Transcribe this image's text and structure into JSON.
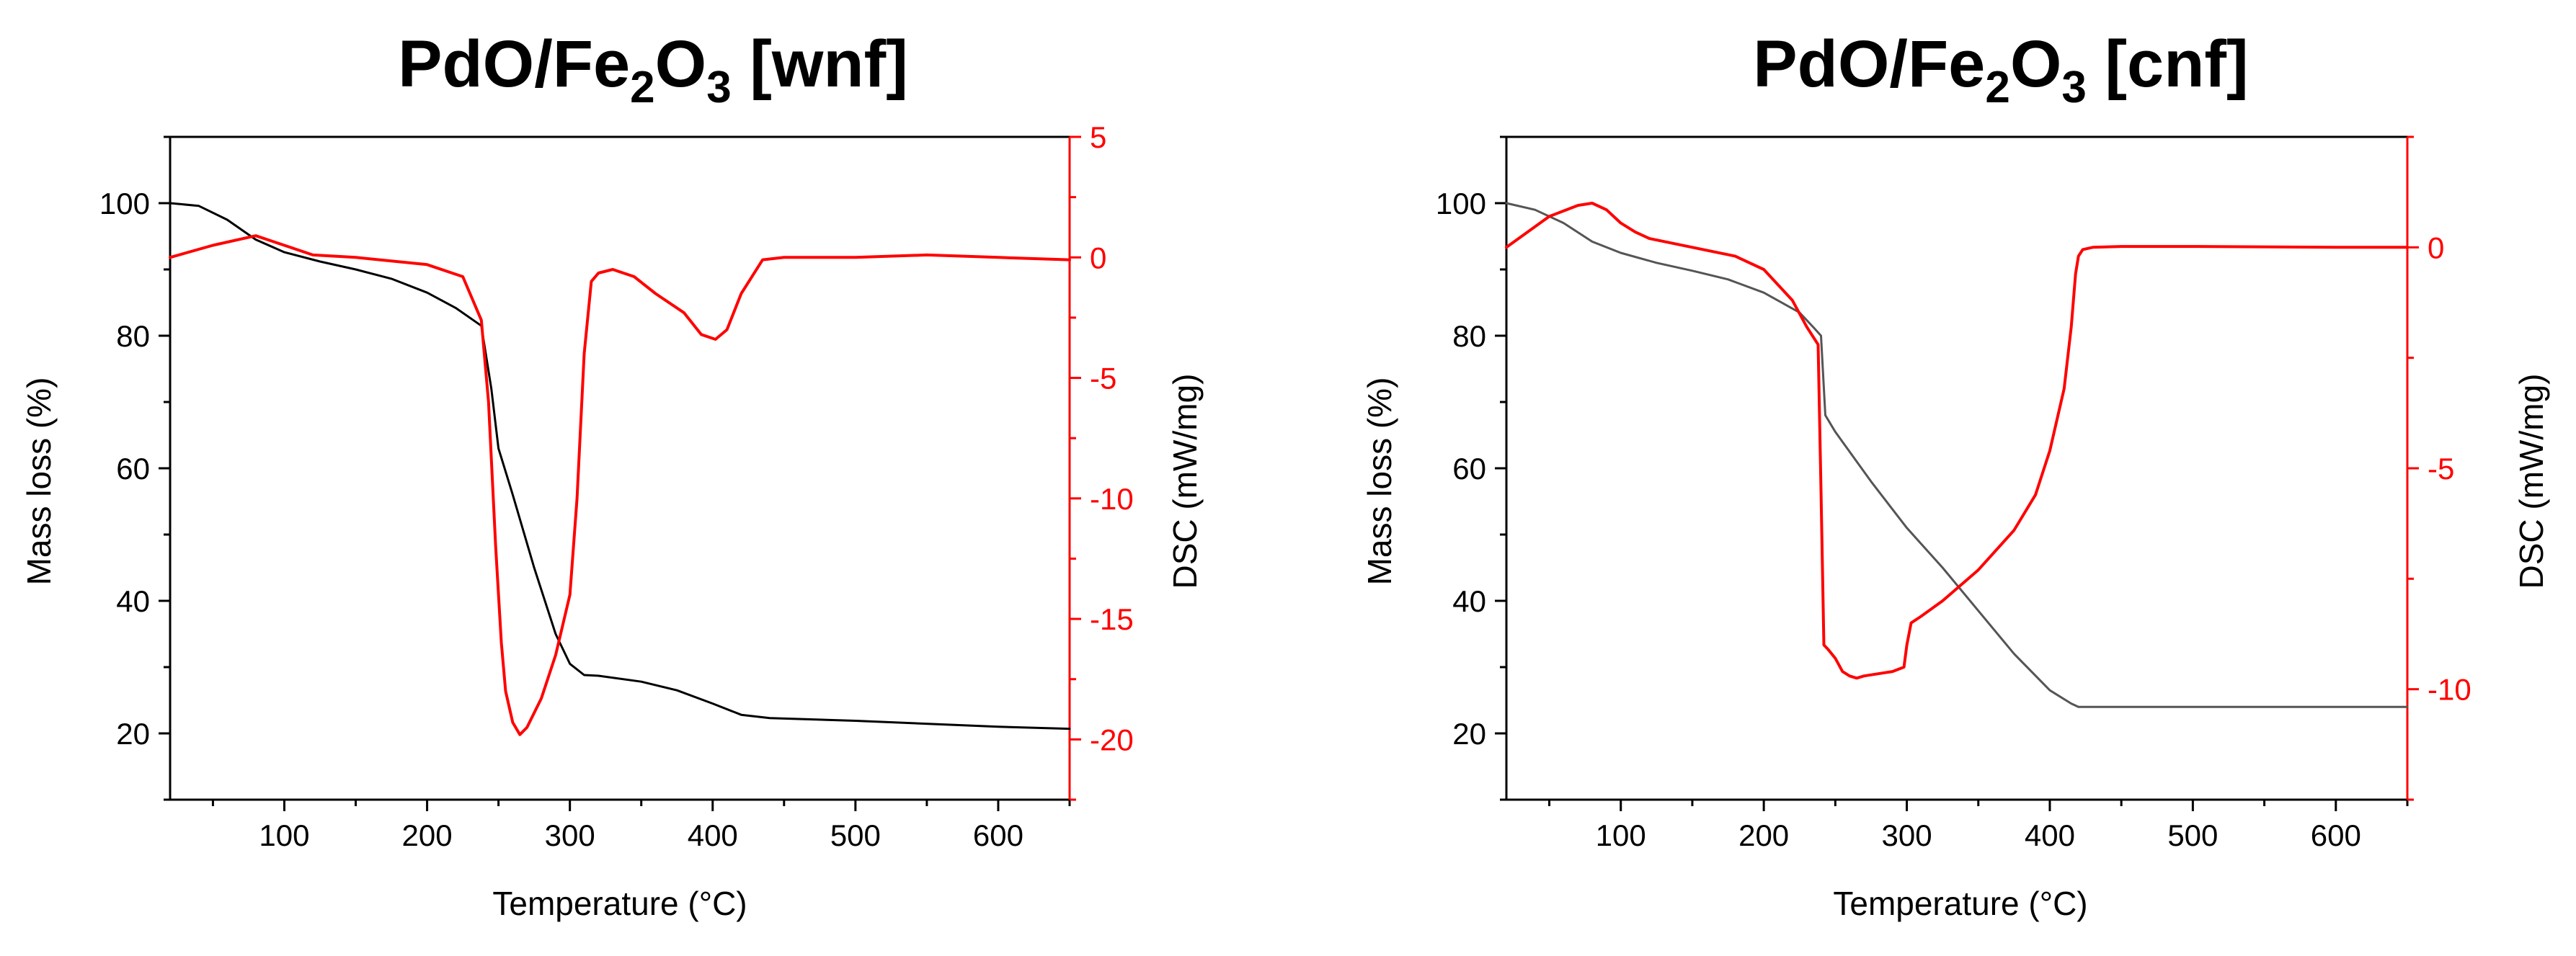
{
  "chart_data": [
    {
      "type": "line",
      "title": {
        "main": "PdO/Fe",
        "sub1": "2",
        "mid": "O",
        "sub2": "3",
        "tail": " [wnf]"
      },
      "xlabel": "Temperature (°C)",
      "ylabel": "Mass loss (%)",
      "y2label": "DSC (mW/mg)",
      "xlim": [
        20,
        650
      ],
      "ylim": [
        10,
        110
      ],
      "y2lim": [
        -22.5,
        5
      ],
      "xticks": [
        100,
        200,
        300,
        400,
        500,
        600
      ],
      "yticks": [
        20,
        40,
        60,
        80,
        100
      ],
      "y2ticks": [
        5,
        0,
        -5,
        -10,
        -15,
        -20
      ],
      "y2ticklabels": [
        "5",
        "0",
        "-5",
        "-10",
        "-15",
        "-20"
      ],
      "series": [
        {
          "name": "Mass loss",
          "axis": "left",
          "color": "#000000",
          "x": [
            20,
            40,
            60,
            80,
            100,
            125,
            150,
            175,
            200,
            220,
            238,
            245,
            250,
            260,
            275,
            290,
            300,
            310,
            320,
            350,
            375,
            400,
            420,
            440,
            500,
            600,
            650
          ],
          "y": [
            100,
            99.6,
            97.5,
            94.5,
            92.6,
            91.2,
            90.0,
            88.6,
            86.5,
            84.2,
            81.5,
            72,
            63,
            56,
            45,
            35,
            30.5,
            28.8,
            28.7,
            27.8,
            26.5,
            24.5,
            22.8,
            22.3,
            21.9,
            21.0,
            20.7
          ]
        },
        {
          "name": "DSC",
          "axis": "right",
          "color": "#ff0000",
          "x": [
            20,
            50,
            80,
            100,
            120,
            150,
            200,
            225,
            238,
            243,
            248,
            252,
            255,
            260,
            265,
            270,
            280,
            290,
            300,
            305,
            310,
            315,
            320,
            330,
            345,
            360,
            380,
            392,
            402,
            410,
            420,
            435,
            450,
            500,
            550,
            600,
            650
          ],
          "y": [
            0,
            0.5,
            0.9,
            0.5,
            0.1,
            0,
            -0.3,
            -0.8,
            -2.6,
            -6,
            -12,
            -16,
            -18,
            -19.3,
            -19.8,
            -19.5,
            -18.3,
            -16.5,
            -14,
            -10,
            -4,
            -1,
            -0.65,
            -0.5,
            -0.8,
            -1.5,
            -2.3,
            -3.2,
            -3.4,
            -3,
            -1.5,
            -0.1,
            0,
            0,
            0.1,
            0,
            -0.1
          ]
        }
      ]
    },
    {
      "type": "line",
      "title": {
        "main": "PdO/Fe",
        "sub1": "2",
        "mid": "O",
        "sub2": "3",
        "tail": " [cnf]"
      },
      "xlabel": "Temperature (°C)",
      "ylabel": "Mass loss (%)",
      "y2label": "DSC (mW/mg)",
      "xlim": [
        20,
        650
      ],
      "ylim": [
        10,
        110
      ],
      "y2lim": [
        -12.5,
        2.5
      ],
      "xticks": [
        100,
        200,
        300,
        400,
        500,
        600
      ],
      "yticks": [
        20,
        40,
        60,
        80,
        100
      ],
      "y2ticks": [
        0,
        -5,
        -10
      ],
      "y2ticklabels": [
        "0",
        "-5",
        "-10"
      ],
      "series": [
        {
          "name": "Mass loss",
          "axis": "left",
          "color": "#555555",
          "x": [
            20,
            40,
            60,
            80,
            100,
            125,
            150,
            175,
            200,
            225,
            235,
            240,
            243,
            250,
            275,
            300,
            325,
            350,
            375,
            400,
            415,
            420,
            450,
            500,
            600,
            650
          ],
          "y": [
            100,
            99,
            97,
            94.2,
            92.5,
            91,
            89.8,
            88.5,
            86.5,
            83.5,
            81.2,
            80,
            68,
            65.5,
            58,
            51,
            45,
            38.5,
            32,
            26.5,
            24.5,
            24,
            24,
            24,
            24,
            24
          ]
        },
        {
          "name": "DSC",
          "axis": "right",
          "color": "#ff0000",
          "x": [
            20,
            50,
            70,
            80,
            90,
            100,
            110,
            120,
            150,
            180,
            200,
            220,
            230,
            238,
            240,
            242,
            245,
            250,
            255,
            260,
            265,
            270,
            280,
            290,
            298,
            300,
            303,
            310,
            325,
            350,
            375,
            390,
            400,
            410,
            415,
            418,
            420,
            423,
            430,
            450,
            500,
            600,
            650
          ],
          "y": [
            0,
            0.7,
            0.95,
            1.0,
            0.85,
            0.55,
            0.35,
            0.2,
            0,
            -0.2,
            -0.5,
            -1.2,
            -1.8,
            -2.2,
            -5.5,
            -9.0,
            -9.1,
            -9.3,
            -9.6,
            -9.7,
            -9.75,
            -9.7,
            -9.65,
            -9.6,
            -9.5,
            -9.0,
            -8.5,
            -8.35,
            -8.0,
            -7.3,
            -6.4,
            -5.6,
            -4.6,
            -3.2,
            -1.8,
            -0.6,
            -0.2,
            -0.05,
            0.0,
            0.02,
            0.02,
            0.0,
            0.0
          ]
        }
      ]
    }
  ]
}
